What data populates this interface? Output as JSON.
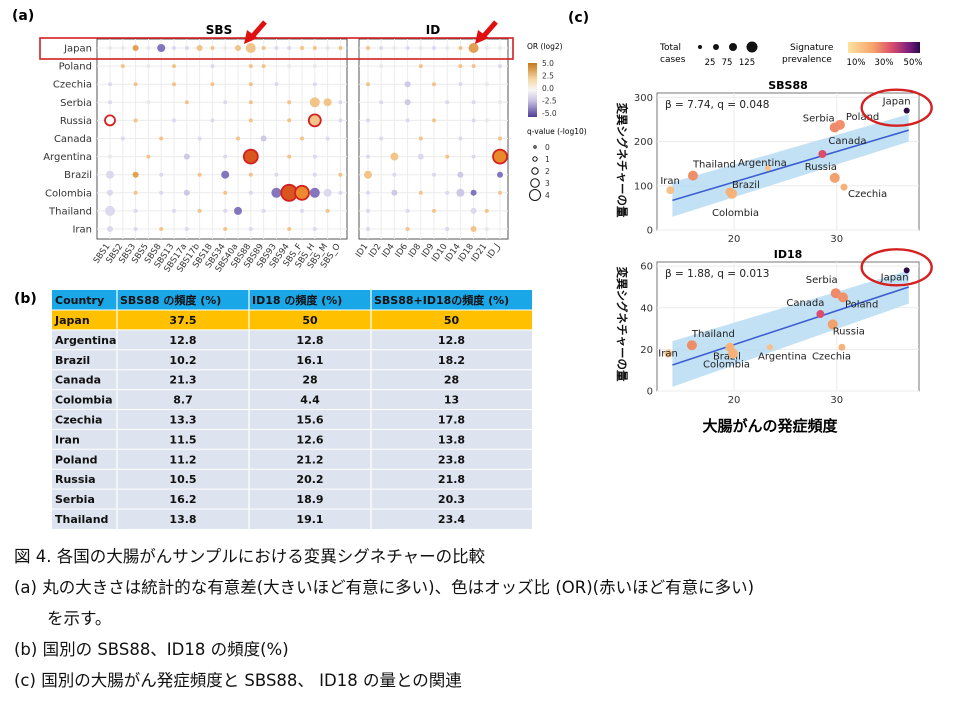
{
  "panels": {
    "a": "(a)",
    "b": "(b)",
    "c": "(c)"
  },
  "panel_a": {
    "sbs_title": "SBS",
    "id_title": "ID",
    "countries": [
      "Japan",
      "Poland",
      "Czechia",
      "Serbia",
      "Russia",
      "Canada",
      "Argentina",
      "Brazil",
      "Colombia",
      "Thailand",
      "Iran"
    ],
    "sbs_signatures": [
      "SBS1",
      "SBS2",
      "SBS3",
      "SBS5",
      "SBS8",
      "SBS13",
      "SBS17a",
      "SBS17b",
      "SBS18",
      "SBS34",
      "SBS40a",
      "SBS88",
      "SBS89",
      "SBS93",
      "SBS94",
      "SBS_F",
      "SBS_H",
      "SBS_M",
      "SBS_O"
    ],
    "id_signatures": [
      "ID1",
      "ID2",
      "ID4",
      "ID6",
      "ID8",
      "ID9",
      "ID10",
      "ID14",
      "ID18",
      "ID21",
      "ID_J"
    ],
    "legend_or_title": "OR (log2)",
    "legend_or_ticks": [
      "5.0",
      "2.5",
      "0.0",
      "-2.5",
      "-5.0"
    ],
    "legend_q_title": "q-value (-log10)",
    "legend_q_ticks": [
      "0",
      "1",
      "2",
      "3",
      "4"
    ],
    "colors": {
      "positive": "#e08a2c",
      "negative": "#6a5aa8",
      "highlight": "#d42020",
      "arrow": "#e01010",
      "grid": "#e6e6e6"
    }
  },
  "panel_b": {
    "headers": [
      "Country",
      "SBS88 の頻度 (%)",
      "ID18 の頻度 (%)",
      "SBS88+ID18の頻度 (%)"
    ],
    "rows": [
      [
        "Japan",
        "37.5",
        "50",
        "50"
      ],
      [
        "Argentina",
        "12.8",
        "12.8",
        "12.8"
      ],
      [
        "Brazil",
        "10.2",
        "16.1",
        "18.2"
      ],
      [
        "Canada",
        "21.3",
        "28",
        "28"
      ],
      [
        "Colombia",
        "8.7",
        "4.4",
        "13"
      ],
      [
        "Czechia",
        "13.3",
        "15.6",
        "17.8"
      ],
      [
        "Iran",
        "11.5",
        "12.6",
        "13.8"
      ],
      [
        "Poland",
        "11.2",
        "21.2",
        "23.8"
      ],
      [
        "Russia",
        "10.5",
        "20.2",
        "21.8"
      ],
      [
        "Serbia",
        "16.2",
        "18.9",
        "20.3"
      ],
      [
        "Thailand",
        "13.8",
        "19.1",
        "23.4"
      ]
    ],
    "colors": {
      "header": "#1aa7e8",
      "highlight": "#ffc000",
      "row": "#dde3ef"
    }
  },
  "panel_c": {
    "legend_total_title": "Total\ncases",
    "legend_total_ticks": [
      "25",
      "75",
      "125"
    ],
    "legend_prev_title": "Signature\nprevalence",
    "legend_prev_ticks": [
      "10%",
      "30%",
      "50%"
    ],
    "shared_xlabel": "大腸がんの発症頻度",
    "shared_ylabel": "変異シグネチャーの量"
  },
  "chart_data": [
    {
      "type": "scatter",
      "title": "SBS88",
      "annotation": "β = 7.74, q = 0.048",
      "xlabel": "大腸がんの発症頻度",
      "ylabel": "変異シグネチャーの量",
      "xlim": [
        12.5,
        38
      ],
      "ylim": [
        0,
        310
      ],
      "x_ticks": [
        20,
        30
      ],
      "y_ticks": [
        0,
        100,
        200,
        300
      ],
      "fit": {
        "x": [
          14,
          37
        ],
        "y": [
          67,
          226
        ]
      },
      "band": {
        "lower": [
          30,
          200
        ],
        "upper": [
          108,
          262
        ]
      },
      "points": [
        {
          "label": "Japan",
          "x": 36.8,
          "y": 270
        },
        {
          "label": "Poland",
          "x": 30.3,
          "y": 238
        },
        {
          "label": "Serbia",
          "x": 29.8,
          "y": 232
        },
        {
          "label": "Canada",
          "x": 28.6,
          "y": 172
        },
        {
          "label": "Russia",
          "x": 29.8,
          "y": 118
        },
        {
          "label": "Czechia",
          "x": 30.7,
          "y": 97
        },
        {
          "label": "Argentina",
          "x": 23.3,
          "y": 140
        },
        {
          "label": "Thailand",
          "x": 16.0,
          "y": 123
        },
        {
          "label": "Iran",
          "x": 13.8,
          "y": 90
        },
        {
          "label": "Brazil",
          "x": 19.6,
          "y": 86
        },
        {
          "label": "Colombia",
          "x": 19.8,
          "y": 82
        }
      ]
    },
    {
      "type": "scatter",
      "title": "ID18",
      "annotation": "β = 1.88, q = 0.013",
      "xlabel": "大腸がんの発症頻度",
      "ylabel": "変異シグネチャーの量",
      "xlim": [
        12.5,
        38
      ],
      "ylim": [
        0,
        62
      ],
      "x_ticks": [
        20,
        30
      ],
      "y_ticks": [
        0,
        20,
        40,
        60
      ],
      "fit": {
        "x": [
          14,
          37
        ],
        "y": [
          12.5,
          50
        ]
      },
      "band": {
        "lower": [
          2,
          42
        ],
        "upper": [
          24,
          58
        ]
      },
      "points": [
        {
          "label": "Japan",
          "x": 36.8,
          "y": 58
        },
        {
          "label": "Serbia",
          "x": 29.9,
          "y": 47
        },
        {
          "label": "Poland",
          "x": 30.6,
          "y": 45
        },
        {
          "label": "Canada",
          "x": 28.4,
          "y": 37
        },
        {
          "label": "Russia",
          "x": 29.6,
          "y": 32
        },
        {
          "label": "Czechia",
          "x": 30.5,
          "y": 21
        },
        {
          "label": "Thailand",
          "x": 15.9,
          "y": 22
        },
        {
          "label": "Brazil",
          "x": 19.6,
          "y": 21
        },
        {
          "label": "Argentina",
          "x": 23.5,
          "y": 21
        },
        {
          "label": "Iran",
          "x": 13.6,
          "y": 18
        },
        {
          "label": "Colombia",
          "x": 19.9,
          "y": 18
        }
      ]
    }
  ],
  "caption": {
    "title": "図 4. 各国の大腸がんサンプルにおける変異シグネチャーの比較",
    "a_line1": "(a) 丸の大きさは統計的な有意差(大きいほど有意に多い)、色はオッズ比 (OR)(赤いほど有意に多い)",
    "a_line2": "を示す。",
    "b": "(b) 国別の SBS88、ID18 の頻度(%)",
    "c": "(c) 国別の大腸がん発症頻度と SBS88、 ID18 の量との関連"
  }
}
